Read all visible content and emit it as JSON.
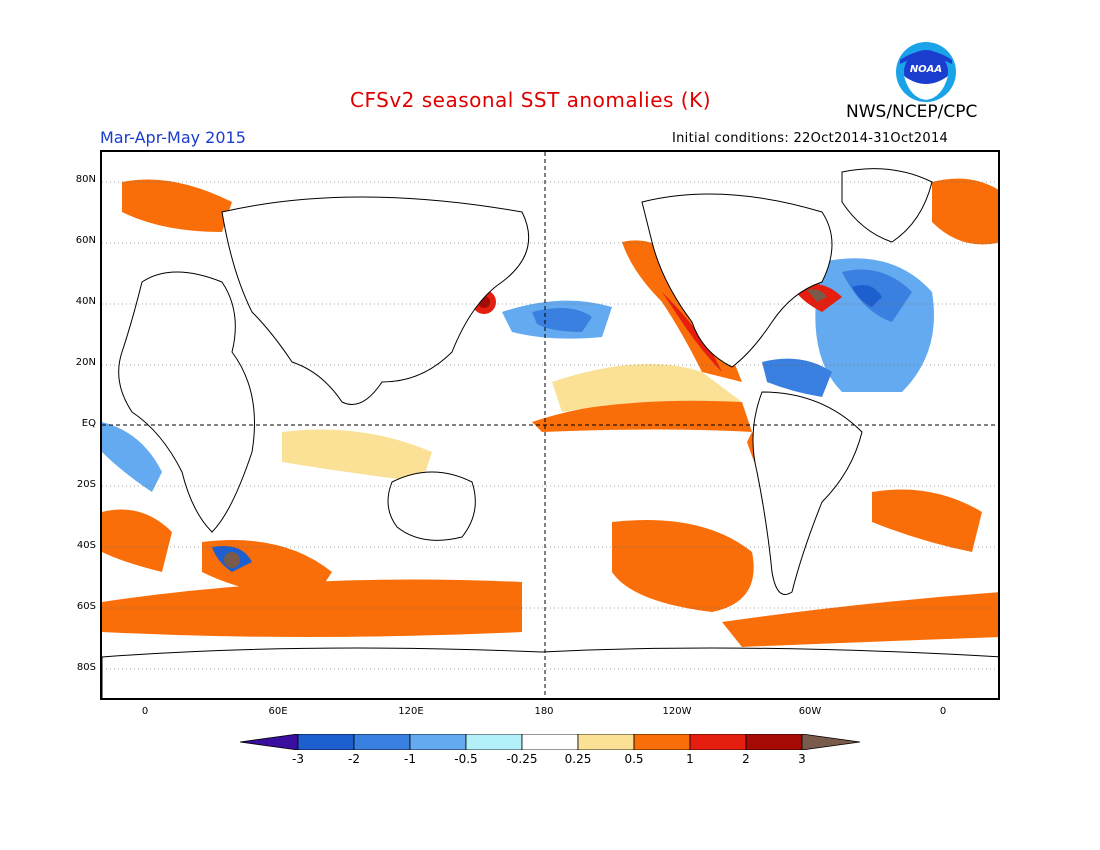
{
  "header": {
    "title": "CFSv2 seasonal SST anomalies (K)",
    "period": "Mar-Apr-May 2015",
    "initial_conditions": "Initial conditions: 22Oct2014-31Oct2014",
    "agency": "NWS/NCEP/CPC",
    "logo_text": "NOAA"
  },
  "axes": {
    "lat_labels": [
      "80N",
      "60N",
      "40N",
      "20N",
      "EQ",
      "20S",
      "40S",
      "60S",
      "80S"
    ],
    "lon_labels": [
      "0",
      "60E",
      "120E",
      "180",
      "120W",
      "60W",
      "0"
    ]
  },
  "colorbar": {
    "labels": [
      "-3",
      "-2",
      "-1",
      "-0.5",
      "-0.25",
      "0.25",
      "0.5",
      "1",
      "2",
      "3"
    ],
    "colors": [
      "#3a0fa0",
      "#1e5fd0",
      "#3a80e0",
      "#64aaf0",
      "#b4f0fa",
      "#ffffff",
      "#fae196",
      "#fa6e0a",
      "#e61e0f",
      "#a50a05",
      "#7a5a4a"
    ]
  },
  "palette": {
    "cold_strong": "#1e5fd0",
    "cold": "#64aaf0",
    "cold_weak": "#b4f0fa",
    "warm_weak": "#fae196",
    "warm": "#fa6e0a",
    "warm_strong": "#e61e0f",
    "extreme": "#a50a05"
  }
}
